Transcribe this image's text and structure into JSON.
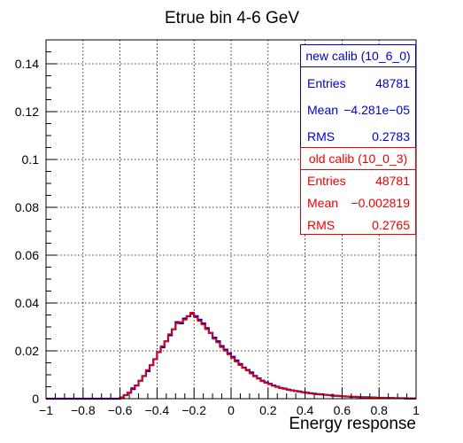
{
  "chart_data": {
    "type": "step-histogram",
    "title": "Etrue bin 4-6 GeV",
    "xlabel": "Energy response",
    "ylabel": "",
    "xlim": [
      -1,
      1
    ],
    "ylim": [
      0,
      0.15
    ],
    "grid": true,
    "x_ticks": [
      -1,
      -0.8,
      -0.6,
      -0.4,
      -0.2,
      0,
      0.2,
      0.4,
      0.6,
      0.8,
      1
    ],
    "x_tick_labels": [
      "−1",
      "−0.8",
      "−0.6",
      "−0.4",
      "−0.2",
      "0",
      "0.2",
      "0.4",
      "0.6",
      "0.8",
      "1"
    ],
    "y_ticks": [
      0,
      0.02,
      0.04,
      0.06,
      0.08,
      0.1,
      0.12,
      0.14
    ],
    "y_tick_labels": [
      "0",
      "0.02",
      "0.04",
      "0.06",
      "0.08",
      "0.1",
      "0.12",
      "0.14"
    ],
    "bin_edges_range": [
      -1,
      1
    ],
    "bin_width": 0.02,
    "series": [
      {
        "name": "new calib (10_6_0)",
        "color": "#0000cc",
        "values": [
          0,
          0,
          0,
          0,
          0,
          0,
          0,
          0,
          0,
          0,
          0,
          0,
          0,
          0,
          0,
          0,
          0,
          0,
          0,
          0,
          0.0005,
          0.0015,
          0.0025,
          0.004,
          0.0055,
          0.0075,
          0.0095,
          0.0115,
          0.014,
          0.0165,
          0.0195,
          0.0215,
          0.024,
          0.0265,
          0.029,
          0.032,
          0.0315,
          0.0335,
          0.0345,
          0.0355,
          0.0345,
          0.033,
          0.0315,
          0.0295,
          0.0275,
          0.0255,
          0.024,
          0.022,
          0.0205,
          0.019,
          0.0175,
          0.016,
          0.0145,
          0.013,
          0.012,
          0.011,
          0.0095,
          0.0085,
          0.0075,
          0.0068,
          0.0062,
          0.0055,
          0.005,
          0.0045,
          0.0042,
          0.0038,
          0.0035,
          0.0032,
          0.003,
          0.0027,
          0.0025,
          0.0023,
          0.0021,
          0.0019,
          0.0018,
          0.0016,
          0.0015,
          0.0013,
          0.0012,
          0.0011,
          0.001,
          0.0009,
          0.0008,
          0.0008,
          0.0007,
          0.0006,
          0.0006,
          0.0005,
          0.0005,
          0.0004,
          0.0004,
          0.0003,
          0.0003,
          0.0003,
          0.0002,
          0.0002,
          0.0002,
          0.0001,
          0.0001,
          0.0001
        ]
      },
      {
        "name": "old calib (10_0_3)",
        "color": "#ee0000",
        "values": [
          0,
          0,
          0,
          0,
          0,
          0,
          0,
          0,
          0,
          0,
          0,
          0,
          0,
          0,
          0,
          0,
          0,
          0,
          0,
          0,
          0.0005,
          0.0015,
          0.0025,
          0.0045,
          0.0055,
          0.0075,
          0.0095,
          0.012,
          0.014,
          0.0165,
          0.0195,
          0.022,
          0.024,
          0.027,
          0.029,
          0.0315,
          0.032,
          0.033,
          0.0345,
          0.036,
          0.034,
          0.0325,
          0.031,
          0.029,
          0.0275,
          0.025,
          0.0235,
          0.0215,
          0.02,
          0.0185,
          0.017,
          0.0155,
          0.014,
          0.0128,
          0.0118,
          0.0105,
          0.0093,
          0.0083,
          0.0073,
          0.0066,
          0.006,
          0.0054,
          0.0049,
          0.0044,
          0.0041,
          0.0037,
          0.0034,
          0.0031,
          0.0029,
          0.0026,
          0.0024,
          0.0022,
          0.002,
          0.0019,
          0.0017,
          0.0016,
          0.0014,
          0.0013,
          0.0012,
          0.0011,
          0.001,
          0.0009,
          0.0008,
          0.0008,
          0.0007,
          0.0006,
          0.0006,
          0.0005,
          0.0005,
          0.0004,
          0.0004,
          0.0003,
          0.0003,
          0.0003,
          0.0002,
          0.0002,
          0.0002,
          0.0001,
          0.0001,
          0.0001
        ]
      }
    ]
  },
  "stats": {
    "new": {
      "title": "new calib (10_6_0)",
      "color": "#0000cc",
      "entries_label": "Entries",
      "entries": "48781",
      "mean_label": "Mean",
      "mean": "−4.281e−05",
      "rms_label": "RMS",
      "rms": "0.2783"
    },
    "old": {
      "title": "old calib (10_0_3)",
      "color": "#ee0000",
      "entries_label": "Entries",
      "entries": "48781",
      "mean_label": "Mean",
      "mean": "−0.002819",
      "rms_label": "RMS",
      "rms": "0.2765"
    }
  }
}
